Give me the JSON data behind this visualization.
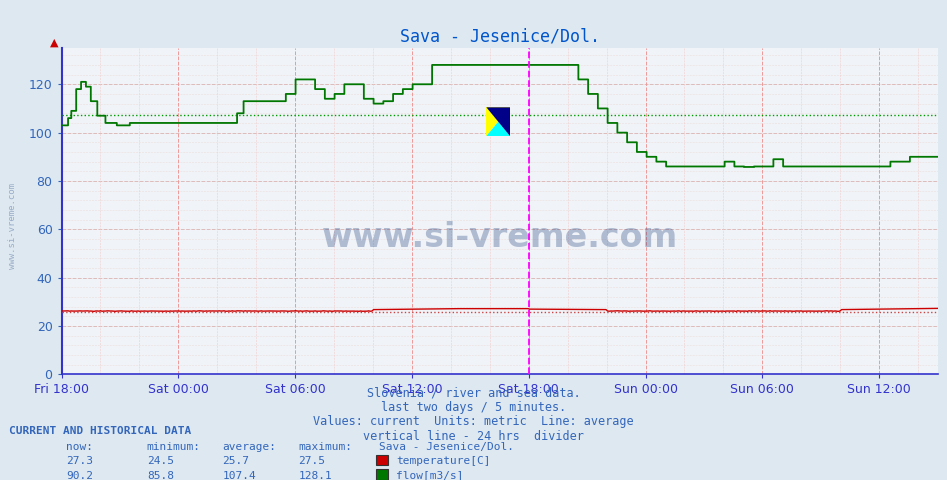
{
  "title": "Sava - Jesenice/Dol.",
  "title_color": "#0055cc",
  "bg_color": "#dde8f0",
  "plot_bg_color": "#f0f4f8",
  "ylim": [
    0,
    135
  ],
  "yticks": [
    0,
    20,
    40,
    60,
    80,
    100,
    120
  ],
  "total_hours": 45,
  "n_points": 540,
  "temp_avg": 25.7,
  "flow_avg": 107.4,
  "temp_color": "#cc0000",
  "flow_color": "#007700",
  "avg_line_color_temp": "#cc4444",
  "avg_line_color_flow": "#009900",
  "divider_color": "#ff00ff",
  "grid_v_color": "#ee9999",
  "grid_h_color": "#ddbbbb",
  "grid_h_minor_color": "#eedddd",
  "border_left_color": "#3333cc",
  "border_bottom_color": "#3333cc",
  "tick_label_color": "#3366bb",
  "watermark_color": "#1a3a7a",
  "footer_text_color": "#3366bb",
  "xtick_labels": [
    "Fri 18:00",
    "Sat 00:00",
    "Sat 06:00",
    "Sat 12:00",
    "Sat 18:00",
    "Sun 00:00",
    "Sun 06:00",
    "Sun 12:00"
  ],
  "xtick_positions_hours": [
    0,
    6,
    12,
    18,
    24,
    30,
    36,
    42
  ],
  "footer_lines": [
    "Slovenia / river and sea data.",
    "last two days / 5 minutes.",
    "Values: current  Units: metric  Line: average",
    "vertical line - 24 hrs  divider"
  ],
  "legend_title": "Sava - Jesenice/Dol.",
  "table_headers": [
    "now:",
    "minimum:",
    "average:",
    "maximum:"
  ],
  "table_rows": [
    {
      "values": [
        "27.3",
        "24.5",
        "25.7",
        "27.5"
      ],
      "color": "#cc0000",
      "label": "temperature[C]"
    },
    {
      "values": [
        "90.2",
        "85.8",
        "107.4",
        "128.1"
      ],
      "color": "#007700",
      "label": "flow[m3/s]"
    }
  ]
}
